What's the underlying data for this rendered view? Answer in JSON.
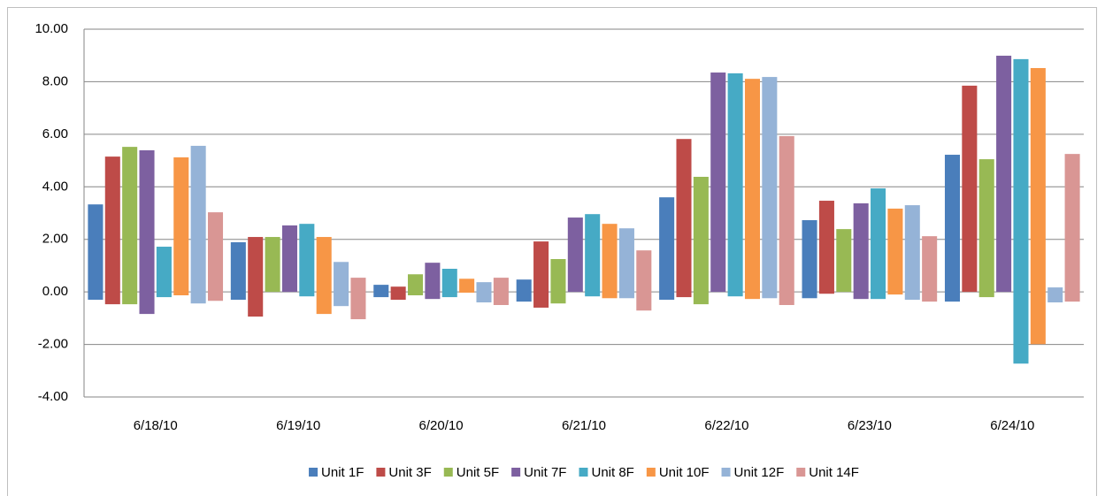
{
  "chart_data": {
    "type": "floating-bar",
    "categories": [
      "6/18/10",
      "6/19/10",
      "6/20/10",
      "6/21/10",
      "6/22/10",
      "6/23/10",
      "6/24/10"
    ],
    "ylim": [
      -4,
      10
    ],
    "yticks": [
      {
        "value": -4,
        "label": "-4.00"
      },
      {
        "value": -2,
        "label": "-2.00"
      },
      {
        "value": 0,
        "label": "0.00"
      },
      {
        "value": 2,
        "label": "2.00"
      },
      {
        "value": 4,
        "label": "4.00"
      },
      {
        "value": 6,
        "label": "6.00"
      },
      {
        "value": 8,
        "label": "8.00"
      },
      {
        "value": 10,
        "label": "10.00"
      }
    ],
    "grid": true,
    "legend": "bottom",
    "series": [
      {
        "name": "Unit 1F",
        "color": "#4a7ebb",
        "low": [
          -0.3,
          -0.3,
          -0.2,
          -0.37,
          -0.3,
          -0.24,
          -0.37
        ],
        "high": [
          3.33,
          1.89,
          0.27,
          0.47,
          3.6,
          2.73,
          5.22
        ]
      },
      {
        "name": "Unit 3F",
        "color": "#be4b48",
        "low": [
          -0.47,
          -0.94,
          -0.3,
          -0.6,
          -0.2,
          -0.07,
          0
        ],
        "high": [
          5.15,
          2.09,
          0.2,
          1.92,
          5.82,
          3.47,
          7.85
        ]
      },
      {
        "name": "Unit 5F",
        "color": "#98b954",
        "low": [
          -0.47,
          0,
          -0.13,
          -0.44,
          -0.47,
          0,
          -0.2
        ],
        "high": [
          5.52,
          2.09,
          0.67,
          1.25,
          4.38,
          2.39,
          5.05
        ]
      },
      {
        "name": "Unit 7F",
        "color": "#7d60a0",
        "low": [
          -0.84,
          0,
          -0.27,
          0,
          0,
          -0.27,
          0
        ],
        "high": [
          5.39,
          2.53,
          1.11,
          2.83,
          8.35,
          3.37,
          8.99
        ]
      },
      {
        "name": "Unit 8F",
        "color": "#46aac5",
        "low": [
          -0.2,
          -0.17,
          -0.2,
          -0.17,
          -0.17,
          -0.27,
          -2.73
        ],
        "high": [
          1.72,
          2.59,
          0.88,
          2.96,
          8.32,
          3.94,
          8.86
        ]
      },
      {
        "name": "Unit 10F",
        "color": "#f79646",
        "low": [
          -0.13,
          -0.84,
          -0.03,
          -0.24,
          -0.27,
          -0.1,
          -1.99
        ],
        "high": [
          5.12,
          2.09,
          0.5,
          2.59,
          8.11,
          3.17,
          8.52
        ]
      },
      {
        "name": "Unit 12F",
        "color": "#95b3d7",
        "low": [
          -0.44,
          -0.54,
          -0.4,
          -0.24,
          -0.24,
          -0.3,
          -0.4
        ],
        "high": [
          5.56,
          1.14,
          0.37,
          2.42,
          8.18,
          3.3,
          0.17
        ]
      },
      {
        "name": "Unit 14F",
        "color": "#d99694",
        "low": [
          -0.34,
          -1.04,
          -0.5,
          -0.71,
          -0.5,
          -0.37,
          -0.37
        ],
        "high": [
          3.03,
          0.54,
          0.54,
          1.58,
          5.93,
          2.12,
          5.25
        ]
      }
    ]
  }
}
